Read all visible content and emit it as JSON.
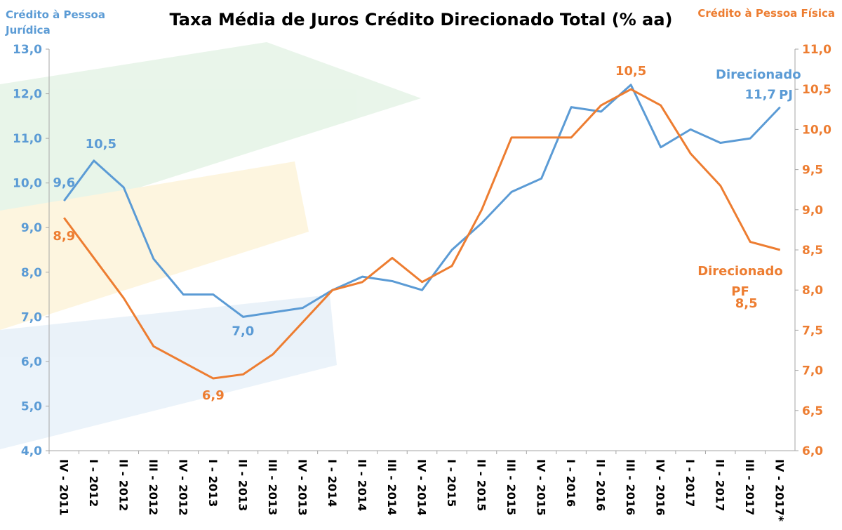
{
  "chart_data": {
    "type": "line",
    "title": "Taxa Média de Juros Crédito Direcionado Total (% aa)",
    "y_label": "Crédito à Pessoa Jurídica",
    "y2_label": "Crédito à Pessoa Física",
    "categories": [
      "IV - 2011",
      "I - 2012",
      "II - 2012",
      "III - 2012",
      "IV - 2012",
      "I - 2013",
      "II - 2013",
      "III - 2013",
      "IV - 2013",
      "I - 2014",
      "II - 2014",
      "III - 2014",
      "IV - 2014",
      "I - 2015",
      "II - 2015",
      "III - 2015",
      "IV - 2015",
      "I - 2016",
      "II - 2016",
      "III - 2016",
      "IV - 2016",
      "I - 2017",
      "II - 2017",
      "III - 2017",
      "IV - 2017*"
    ],
    "ylim": [
      4,
      13
    ],
    "yticks": [
      {
        "value": 4,
        "label": "4,0"
      },
      {
        "value": 5,
        "label": "5,0"
      },
      {
        "value": 6,
        "label": "6,0"
      },
      {
        "value": 7,
        "label": "7,0"
      },
      {
        "value": 8,
        "label": "8,0"
      },
      {
        "value": 9,
        "label": "9,0"
      },
      {
        "value": 10,
        "label": "10,0"
      },
      {
        "value": 11,
        "label": "11,0"
      },
      {
        "value": 12,
        "label": "12,0"
      },
      {
        "value": 13,
        "label": "13,0"
      }
    ],
    "y2lim": [
      6,
      11
    ],
    "y2ticks": [
      {
        "value": 6,
        "label": "6,0"
      },
      {
        "value": 6.5,
        "label": "6,5"
      },
      {
        "value": 7,
        "label": "7,0"
      },
      {
        "value": 7.5,
        "label": "7,5"
      },
      {
        "value": 8,
        "label": "8,0"
      },
      {
        "value": 8.5,
        "label": "8,5"
      },
      {
        "value": 9,
        "label": "9,0"
      },
      {
        "value": 9.5,
        "label": "9,5"
      },
      {
        "value": 10,
        "label": "10,0"
      },
      {
        "value": 10.5,
        "label": "10,5"
      },
      {
        "value": 11,
        "label": "11,0"
      }
    ],
    "grid": false,
    "series": [
      {
        "name": "Direcionado PJ",
        "color": "#5b9bd5",
        "axis": "y",
        "values": [
          9.6,
          10.5,
          9.9,
          8.3,
          7.5,
          7.5,
          7.0,
          7.1,
          7.2,
          7.6,
          7.9,
          7.8,
          7.6,
          8.5,
          9.1,
          9.8,
          10.1,
          11.7,
          11.6,
          12.2,
          10.8,
          11.2,
          10.9,
          11.0,
          11.7
        ],
        "value_labels": [
          "9,6",
          "10,5",
          null,
          null,
          null,
          null,
          "7,0",
          null,
          null,
          null,
          null,
          null,
          null,
          null,
          null,
          null,
          null,
          null,
          null,
          null,
          null,
          null,
          null,
          null,
          "11,7"
        ]
      },
      {
        "name": "Direcionado PF",
        "color": "#ed7d31",
        "axis": "y2",
        "values": [
          8.9,
          8.4,
          7.9,
          7.3,
          7.1,
          6.9,
          6.95,
          7.2,
          7.6,
          8.0,
          8.1,
          8.4,
          8.1,
          8.3,
          9.0,
          9.9,
          9.9,
          9.9,
          10.3,
          10.5,
          10.3,
          9.7,
          9.3,
          8.6,
          8.5
        ],
        "value_labels": [
          "8,9",
          null,
          null,
          null,
          null,
          "6,9",
          null,
          null,
          null,
          null,
          null,
          null,
          null,
          null,
          null,
          null,
          null,
          null,
          null,
          "10,5",
          null,
          null,
          null,
          null,
          "8,5"
        ]
      }
    ]
  }
}
